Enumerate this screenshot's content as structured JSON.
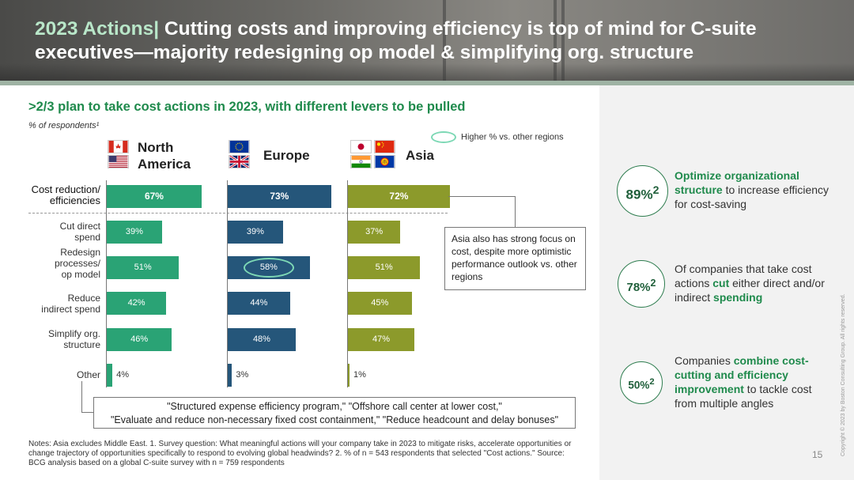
{
  "header": {
    "title_accent": "2023 Actions|",
    "title_rest": " Cutting costs and improving efficiency is top of mind for C-suite executives—majority redesigning op model & simplifying org. structure"
  },
  "subtitle": ">2/3 plan to take cost actions in 2023, with different levers to be pulled",
  "respondents_label": "% of respondents¹",
  "legend_label": "Higher % vs. other regions",
  "colors": {
    "north_america": "#2aa375",
    "europe": "#25567a",
    "asia": "#8c9a2b",
    "highlight": "#7dd8b5",
    "accent_green": "#1f8a4c"
  },
  "flags": [
    "canada-flag",
    "usa-flag",
    "eu-flag",
    "uk-flag",
    "japan-flag",
    "china-flag",
    "india-flag",
    "asean-flag"
  ],
  "chart_data": {
    "type": "bar",
    "orientation": "horizontal",
    "categories": [
      "Cost reduction/ efficiencies",
      "Cut direct spend",
      "Redesign processes/ op model",
      "Reduce indirect spend",
      "Simplify org. structure",
      "Other"
    ],
    "series": [
      {
        "name": "North America",
        "values": [
          67,
          39,
          51,
          42,
          46,
          4
        ]
      },
      {
        "name": "Europe",
        "values": [
          73,
          39,
          58,
          44,
          48,
          3
        ]
      },
      {
        "name": "Asia",
        "values": [
          72,
          37,
          51,
          45,
          47,
          1
        ]
      }
    ],
    "value_suffix": "%",
    "highlighted": [
      {
        "series": "Europe",
        "category": "Redesign processes/ op model"
      }
    ]
  },
  "category_lines": [
    [
      "Cost reduction/",
      "efficiencies"
    ],
    [
      "Cut direct",
      "spend"
    ],
    [
      "Redesign",
      "processes/",
      "op model"
    ],
    [
      "Reduce",
      "indirect spend"
    ],
    [
      "Simplify org.",
      "structure"
    ],
    [
      "Other"
    ]
  ],
  "region_lines": {
    "north_america": [
      "North",
      "America"
    ],
    "europe": [
      "Europe"
    ],
    "asia": [
      "Asia"
    ]
  },
  "callout": "Asia also has strong focus on cost, despite more optimistic performance outlook vs. other regions",
  "quotes": {
    "line1": "\"Structured expense efficiency program,\" \"Offshore call center at lower cost,\"",
    "line2": "\"Evaluate and reduce non-necessary fixed cost containment,\" \"Reduce headcount and delay bonuses\""
  },
  "notes": "Notes: Asia excludes Middle East. 1. Survey question: What meaningful actions will your company take in 2023 to mitigate risks, accelerate opportunities or change trajectory of opportunities specifically to respond to evolving global headwinds? 2. % of n = 543 respondents that selected \"Cost actions.\" Source: BCG analysis based on a global C-suite survey with n = 759 respondents",
  "stats": [
    {
      "value": "89%",
      "sup": "2",
      "pre": "",
      "b1": "Optimize organizational structure",
      "mid": " to increase efficiency for cost-saving",
      "b2": "",
      "post": ""
    },
    {
      "value": "78%",
      "sup": "2",
      "pre": "Of companies that take cost actions ",
      "b1": "cut",
      "mid": " either direct and/or indirect ",
      "b2": "spending",
      "post": ""
    },
    {
      "value": "50%",
      "sup": "2",
      "pre": "Companies ",
      "b1": "combine cost-cutting and efficiency improvement",
      "mid": " to tackle cost from multiple angles",
      "b2": "",
      "post": ""
    }
  ],
  "page_number": "15",
  "copyright": "Copyright © 2023 by Boston Consulting Group. All rights reserved."
}
